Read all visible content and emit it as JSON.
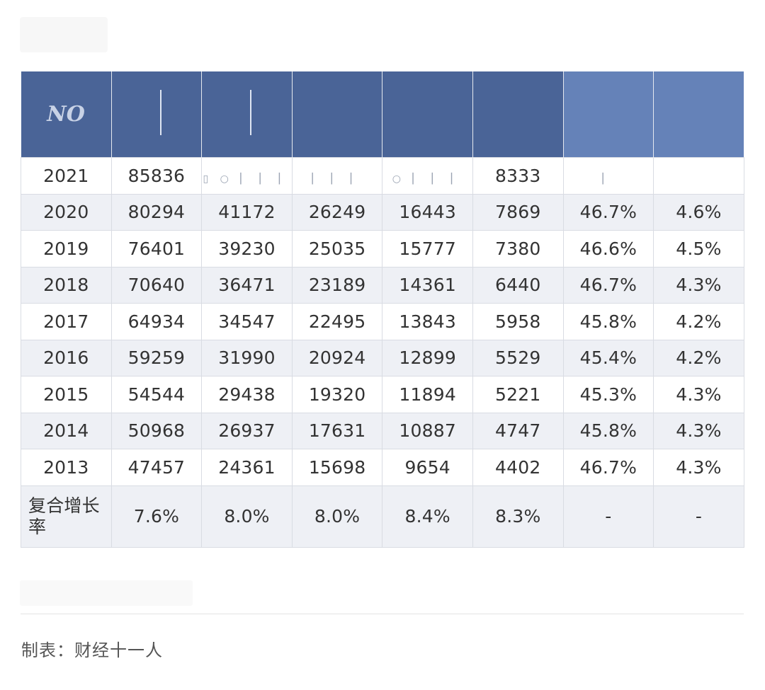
{
  "header": {
    "col1_glyph": "NO"
  },
  "rows": [
    {
      "year": "2021",
      "c1": "85836",
      "c2": "",
      "c3": "",
      "c4": "",
      "c5": "8333",
      "c6": "",
      "c7": ""
    },
    {
      "year": "2020",
      "c1": "80294",
      "c2": "41172",
      "c3": "26249",
      "c4": "16443",
      "c5": "7869",
      "c6": "46.7%",
      "c7": "4.6%"
    },
    {
      "year": "2019",
      "c1": "76401",
      "c2": "39230",
      "c3": "25035",
      "c4": "15777",
      "c5": "7380",
      "c6": "46.6%",
      "c7": "4.5%"
    },
    {
      "year": "2018",
      "c1": "70640",
      "c2": "36471",
      "c3": "23189",
      "c4": "14361",
      "c5": "6440",
      "c6": "46.7%",
      "c7": "4.3%"
    },
    {
      "year": "2017",
      "c1": "64934",
      "c2": "34547",
      "c3": "22495",
      "c4": "13843",
      "c5": "5958",
      "c6": "45.8%",
      "c7": "4.2%"
    },
    {
      "year": "2016",
      "c1": "59259",
      "c2": "31990",
      "c3": "20924",
      "c4": "12899",
      "c5": "5529",
      "c6": "45.4%",
      "c7": "4.2%"
    },
    {
      "year": "2015",
      "c1": "54544",
      "c2": "29438",
      "c3": "19320",
      "c4": "11894",
      "c5": "5221",
      "c6": "45.3%",
      "c7": "4.3%"
    },
    {
      "year": "2014",
      "c1": "50968",
      "c2": "26937",
      "c3": "17631",
      "c4": "10887",
      "c5": "4747",
      "c6": "45.8%",
      "c7": "4.3%"
    },
    {
      "year": "2013",
      "c1": "47457",
      "c2": "24361",
      "c3": "15698",
      "c4": "9654",
      "c5": "4402",
      "c6": "46.7%",
      "c7": "4.3%"
    }
  ],
  "growth_row": {
    "label": "复合增长率",
    "c1": "7.6%",
    "c2": "8.0%",
    "c3": "8.0%",
    "c4": "8.4%",
    "c5": "8.3%",
    "c6": "-",
    "c7": "-"
  },
  "footer": {
    "source": "制表：财经十一人"
  },
  "colors": {
    "header_bg": "#4a6497",
    "row_alt_bg": "#eef0f5",
    "border": "#d9dce3"
  }
}
